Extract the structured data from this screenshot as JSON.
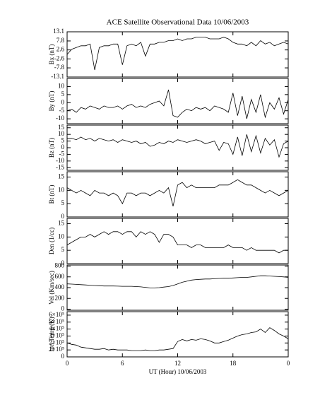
{
  "chart_data": [
    {
      "type": "line",
      "title": "ACE Satellite Observational Data  10/06/2003",
      "ylabel": "Bx (nT)",
      "color": "#000000",
      "ylim": [
        -13.1,
        13.1
      ],
      "yticks": [
        -13.1,
        -7.8,
        -2.6,
        2.6,
        7.8,
        13.1
      ],
      "values": [
        0,
        3,
        4,
        5,
        5,
        6,
        -9,
        4,
        5,
        5,
        6,
        6,
        -6,
        5,
        6,
        5,
        7,
        -1,
        6,
        6,
        7,
        7,
        8,
        8,
        9,
        8,
        9,
        9,
        10,
        10,
        10,
        9,
        9,
        9,
        10,
        9,
        7,
        6,
        6,
        5,
        7,
        5,
        8,
        6,
        7,
        5,
        6,
        7,
        6
      ]
    },
    {
      "type": "line",
      "ylabel": "By (nT)",
      "color": "#000000",
      "ylim": [
        -13,
        15
      ],
      "yticks": [
        -10,
        -5,
        0,
        5,
        10
      ],
      "values": [
        -5,
        -4,
        -6,
        -3,
        -4,
        -2,
        -3,
        -4,
        -2,
        -3,
        -3,
        -2,
        -4,
        -2,
        -1,
        -3,
        -2,
        -3,
        -1,
        0,
        1,
        -2,
        8,
        -8,
        -9,
        -6,
        -4,
        -5,
        -3,
        -4,
        -3,
        -5,
        -2,
        -3,
        -4,
        -6,
        6,
        -8,
        4,
        -10,
        2,
        -6,
        5,
        -9,
        0,
        -4,
        3,
        -7,
        2
      ]
    },
    {
      "type": "line",
      "ylabel": "Bz (nT)",
      "color": "#000000",
      "ylim": [
        -17,
        17
      ],
      "yticks": [
        -15,
        -10,
        -5,
        0,
        5,
        10,
        15
      ],
      "values": [
        7,
        7,
        6,
        8,
        6,
        7,
        5,
        7,
        6,
        5,
        6,
        4,
        6,
        5,
        4,
        5,
        3,
        4,
        1,
        2,
        4,
        3,
        5,
        4,
        6,
        5,
        4,
        5,
        6,
        5,
        3,
        4,
        5,
        -2,
        4,
        3,
        -5,
        8,
        -6,
        10,
        -3,
        9,
        -4,
        7,
        2,
        6,
        -7,
        3,
        5
      ]
    },
    {
      "type": "line",
      "ylabel": "Bt (nT)",
      "color": "#000000",
      "ylim": [
        0,
        17
      ],
      "yticks": [
        0,
        5,
        10,
        15
      ],
      "values": [
        11,
        10,
        9,
        10,
        9,
        8,
        10,
        9,
        9,
        8,
        9,
        8,
        5,
        9,
        9,
        8,
        9,
        9,
        8,
        9,
        10,
        9,
        11,
        4,
        12,
        13,
        11,
        12,
        11,
        11,
        11,
        11,
        11,
        12,
        12,
        12,
        13,
        14,
        13,
        12,
        12,
        11,
        10,
        9,
        10,
        9,
        8,
        9,
        10
      ]
    },
    {
      "type": "line",
      "ylabel": "Den (1/cc)",
      "color": "#000000",
      "ylim": [
        0,
        17
      ],
      "yticks": [
        0,
        5,
        10,
        15
      ],
      "values": [
        7,
        8,
        9,
        10,
        10,
        11,
        10,
        11,
        12,
        11,
        12,
        12,
        11,
        12,
        12,
        10,
        12,
        11,
        12,
        11,
        8,
        11,
        11,
        10,
        7,
        7,
        7,
        6,
        7,
        7,
        6,
        6,
        6,
        6,
        6,
        7,
        6,
        6,
        6,
        5,
        6,
        5,
        5,
        5,
        5,
        5,
        4,
        5,
        5
      ]
    },
    {
      "type": "line",
      "ylabel": "Vel (Km/sec)",
      "color": "#000000",
      "ylim": [
        -20,
        820
      ],
      "yticks": [
        0,
        200,
        400,
        600,
        800
      ],
      "values": [
        470,
        465,
        460,
        455,
        450,
        445,
        440,
        435,
        430,
        430,
        430,
        428,
        425,
        425,
        425,
        420,
        415,
        405,
        395,
        395,
        400,
        410,
        420,
        440,
        470,
        500,
        520,
        540,
        550,
        555,
        560,
        560,
        565,
        570,
        575,
        575,
        580,
        585,
        590,
        590,
        600,
        610,
        620,
        620,
        615,
        610,
        605,
        600,
        590
      ]
    },
    {
      "type": "line",
      "ylabel": "Ion Temp (K)",
      "xlabel": "UT (Hour)  10/06/2003",
      "color": "#000000",
      "ylim": [
        0,
        650000
      ],
      "yticks": [
        0,
        {
          "value": 100000,
          "label": "1×10⁵"
        },
        {
          "value": 200000,
          "label": "2×10⁵"
        },
        {
          "value": 300000,
          "label": "3×10⁵"
        },
        {
          "value": 400000,
          "label": "4×10⁵"
        },
        {
          "value": 500000,
          "label": "5×10⁵"
        },
        {
          "value": 600000,
          "label": "6×10⁵"
        }
      ],
      "xlim": [
        0,
        24
      ],
      "xticks": [
        0,
        6,
        12,
        18,
        {
          "value": 24,
          "label": "0"
        }
      ],
      "x": [
        0,
        0.5,
        1,
        1.5,
        2,
        2.5,
        3,
        3.5,
        4,
        4.5,
        5,
        5.5,
        6,
        6.5,
        7,
        7.5,
        8,
        8.5,
        9,
        9.5,
        10,
        10.5,
        11,
        11.5,
        12,
        12.5,
        13,
        13.5,
        14,
        14.5,
        15,
        15.5,
        16,
        16.5,
        17,
        17.5,
        18,
        18.5,
        19,
        19.5,
        20,
        20.5,
        21,
        21.5,
        22,
        22.5,
        23,
        23.5,
        24
      ],
      "values": [
        200000,
        180000,
        170000,
        140000,
        130000,
        120000,
        110000,
        110000,
        120000,
        100000,
        110000,
        100000,
        100000,
        100000,
        90000,
        90000,
        90000,
        100000,
        90000,
        90000,
        100000,
        100000,
        110000,
        120000,
        220000,
        250000,
        230000,
        250000,
        240000,
        260000,
        250000,
        230000,
        200000,
        200000,
        220000,
        240000,
        270000,
        300000,
        320000,
        330000,
        350000,
        360000,
        400000,
        350000,
        420000,
        380000,
        330000,
        300000,
        260000
      ]
    }
  ]
}
